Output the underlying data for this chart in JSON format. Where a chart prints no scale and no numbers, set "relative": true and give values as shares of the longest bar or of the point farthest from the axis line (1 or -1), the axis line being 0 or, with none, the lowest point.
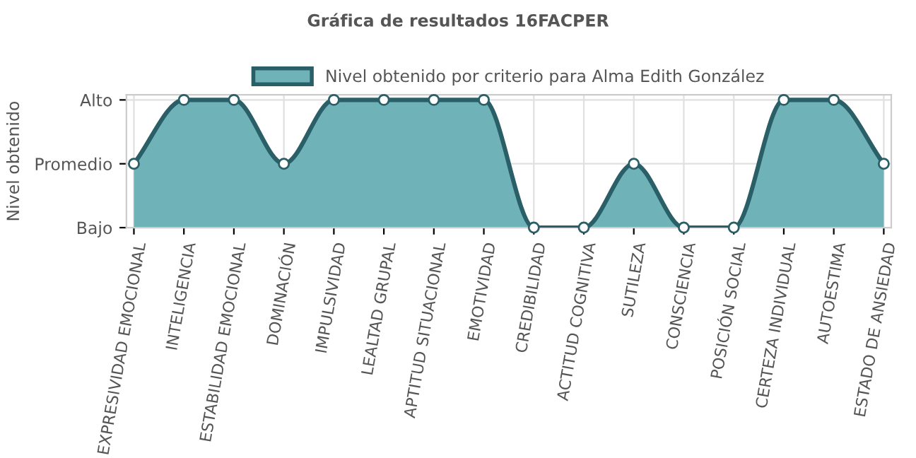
{
  "chart_data": {
    "type": "area",
    "title": "Gráfica de resultados 16FACPER",
    "ylabel": "Nivel obtenido",
    "categories": [
      "EXPRESIVIDAD EMOCIONAL",
      "INTELIGENCIA",
      "ESTABILIDAD EMOCIONAL",
      "DOMINACIÓN",
      "IMPULSIVIDAD",
      "LEALTAD GRUPAL",
      "APTITUD SITUACIONAL",
      "EMOTIVIDAD",
      "CREDIBILIDAD",
      "ACTITUD COGNITIVA",
      "SUTILEZA",
      "CONSCIENCIA",
      "POSICIÓN SOCIAL",
      "CERTEZA INDIVIDUAL",
      "AUTOESTIMA",
      "ESTADO DE ANSIEDAD"
    ],
    "y_categories": [
      "Alto",
      "Promedio",
      "Bajo"
    ],
    "relative": true,
    "series": [
      {
        "name": "Nivel obtenido por criterio para Alma Edith González",
        "color": "#6fb3b9",
        "values": [
          0.5,
          1,
          1,
          0.5,
          1,
          1,
          1,
          1,
          0,
          0,
          0.5,
          0,
          0,
          1,
          1,
          0.5
        ]
      }
    ],
    "grid": true,
    "legend": "top",
    "marker": "circle",
    "line_style": "solid"
  }
}
